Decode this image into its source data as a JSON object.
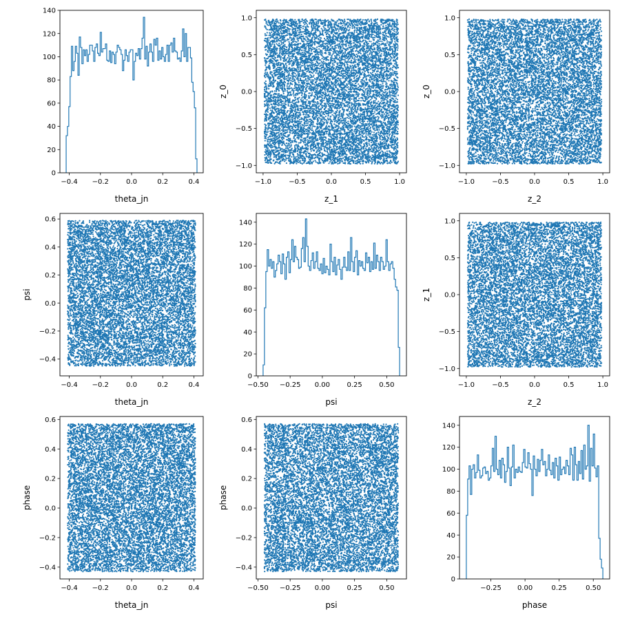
{
  "colors": {
    "series": "#1f77b4",
    "axes": "#000000",
    "background": "#ffffff"
  },
  "chart_data": [
    {
      "type": "histogram",
      "var": "theta_jn",
      "range": [
        -0.42,
        0.42
      ],
      "bins": 100,
      "counts": [
        32,
        40,
        57,
        83,
        109,
        88,
        96,
        109,
        103,
        84,
        117,
        108,
        94,
        106,
        101,
        106,
        96,
        102,
        110,
        110,
        105,
        96,
        108,
        111,
        103,
        101,
        121,
        104,
        107,
        107,
        111,
        97,
        96,
        105,
        95,
        104,
        102,
        94,
        104,
        110,
        108,
        106,
        102,
        88,
        97,
        106,
        101,
        96,
        104,
        106,
        106,
        80,
        96,
        103,
        101,
        107,
        98,
        107,
        116,
        134,
        98,
        109,
        92,
        104,
        111,
        104,
        96,
        115,
        110,
        116,
        97,
        105,
        98,
        108,
        100,
        96,
        102,
        110,
        96,
        110,
        112,
        104,
        116,
        105,
        104,
        98,
        99,
        96,
        105,
        124,
        100,
        120,
        96,
        108,
        108,
        99,
        78,
        70,
        56,
        12
      ],
      "xlim": [
        -0.46,
        0.46
      ],
      "ylim": [
        0,
        140
      ],
      "xticks": [
        -0.4,
        -0.2,
        0.0,
        0.2,
        0.4
      ],
      "xtick_labels": [
        "−0.4",
        "−0.2",
        "0.0",
        "0.2",
        "0.4"
      ],
      "yticks": [
        0,
        20,
        40,
        60,
        80,
        100,
        120,
        140
      ],
      "ytick_labels": [
        "0",
        "20",
        "40",
        "60",
        "80",
        "100",
        "120",
        "140"
      ],
      "xlabel": "theta_jn",
      "ylabel": ""
    },
    {
      "type": "scatter",
      "x_var": "z_1",
      "y_var": "z_0",
      "x_range": [
        -0.98,
        0.98
      ],
      "y_range": [
        -0.98,
        0.98
      ],
      "n_points": 10000,
      "uniform": true,
      "xlim": [
        -1.1,
        1.1
      ],
      "ylim": [
        -1.1,
        1.1
      ],
      "xticks": [
        -1.0,
        -0.5,
        0.0,
        0.5,
        1.0
      ],
      "xtick_labels": [
        "−1.0",
        "−0.5",
        "0.0",
        "0.5",
        "1.0"
      ],
      "yticks": [
        -1.0,
        -0.5,
        0.0,
        0.5,
        1.0
      ],
      "ytick_labels": [
        "−1.0",
        "−0.5",
        "0.0",
        "0.5",
        "1.0"
      ],
      "xlabel": "z_1",
      "ylabel": "z_0"
    },
    {
      "type": "scatter",
      "x_var": "z_2",
      "y_var": "z_0",
      "x_range": [
        -0.98,
        0.98
      ],
      "y_range": [
        -0.98,
        0.98
      ],
      "n_points": 10000,
      "uniform": true,
      "xlim": [
        -1.1,
        1.1
      ],
      "ylim": [
        -1.1,
        1.1
      ],
      "xticks": [
        -1.0,
        -0.5,
        0.0,
        0.5,
        1.0
      ],
      "xtick_labels": [
        "−1.0",
        "−0.5",
        "0.0",
        "0.5",
        "1.0"
      ],
      "yticks": [
        -1.0,
        -0.5,
        0.0,
        0.5,
        1.0
      ],
      "ytick_labels": [
        "−1.0",
        "−0.5",
        "0.0",
        "0.5",
        "1.0"
      ],
      "xlabel": "z_2",
      "ylabel": "z_0"
    },
    {
      "type": "scatter",
      "x_var": "theta_jn",
      "y_var": "psi",
      "x_range": [
        -0.41,
        0.41
      ],
      "y_range": [
        -0.45,
        0.59
      ],
      "n_points": 10000,
      "uniform": true,
      "xlim": [
        -0.46,
        0.46
      ],
      "ylim": [
        -0.52,
        0.64
      ],
      "xticks": [
        -0.4,
        -0.2,
        0.0,
        0.2,
        0.4
      ],
      "xtick_labels": [
        "−0.4",
        "−0.2",
        "0.0",
        "0.2",
        "0.4"
      ],
      "yticks": [
        -0.4,
        -0.2,
        0.0,
        0.2,
        0.4,
        0.6
      ],
      "ytick_labels": [
        "−0.4",
        "−0.2",
        "0.0",
        "0.2",
        "0.4",
        "0.6"
      ],
      "xlabel": "theta_jn",
      "ylabel": "psi"
    },
    {
      "type": "histogram",
      "var": "psi",
      "range": [
        -0.46,
        0.6
      ],
      "bins": 100,
      "counts": [
        10,
        62,
        95,
        115,
        100,
        106,
        98,
        104,
        90,
        96,
        102,
        110,
        104,
        93,
        111,
        102,
        88,
        108,
        113,
        94,
        106,
        124,
        104,
        118,
        108,
        106,
        98,
        99,
        116,
        126,
        104,
        143,
        118,
        100,
        96,
        105,
        112,
        98,
        104,
        113,
        98,
        96,
        102,
        93,
        107,
        94,
        100,
        97,
        92,
        120,
        104,
        95,
        108,
        92,
        101,
        106,
        97,
        88,
        99,
        108,
        99,
        96,
        113,
        96,
        126,
        104,
        95,
        108,
        114,
        92,
        105,
        100,
        104,
        98,
        96,
        112,
        103,
        108,
        95,
        104,
        97,
        121,
        98,
        110,
        104,
        96,
        108,
        104,
        97,
        100,
        124,
        104,
        96,
        102,
        104,
        98,
        88,
        81,
        78,
        26
      ],
      "xlim": [
        -0.513,
        0.653
      ],
      "ylim": [
        0,
        148
      ],
      "xticks": [
        -0.5,
        -0.25,
        0.0,
        0.25,
        0.5
      ],
      "xtick_labels": [
        "−0.50",
        "−0.25",
        "0.00",
        "0.25",
        "0.50"
      ],
      "yticks": [
        0,
        20,
        40,
        60,
        80,
        100,
        120,
        140
      ],
      "ytick_labels": [
        "0",
        "20",
        "40",
        "60",
        "80",
        "100",
        "120",
        "140"
      ],
      "xlabel": "psi",
      "ylabel": ""
    },
    {
      "type": "scatter",
      "x_var": "z_2",
      "y_var": "z_1",
      "x_range": [
        -0.98,
        0.98
      ],
      "y_range": [
        -0.98,
        0.98
      ],
      "n_points": 10000,
      "uniform": true,
      "xlim": [
        -1.1,
        1.1
      ],
      "ylim": [
        -1.1,
        1.1
      ],
      "xticks": [
        -1.0,
        -0.5,
        0.0,
        0.5,
        1.0
      ],
      "xtick_labels": [
        "−1.0",
        "−0.5",
        "0.0",
        "0.5",
        "1.0"
      ],
      "yticks": [
        -1.0,
        -0.5,
        0.0,
        0.5,
        1.0
      ],
      "ytick_labels": [
        "−1.0",
        "−0.5",
        "0.0",
        "0.5",
        "1.0"
      ],
      "xlabel": "z_2",
      "ylabel": "z_1"
    },
    {
      "type": "scatter",
      "x_var": "theta_jn",
      "y_var": "phase",
      "x_range": [
        -0.41,
        0.41
      ],
      "y_range": [
        -0.43,
        0.57
      ],
      "n_points": 10000,
      "uniform": true,
      "xlim": [
        -0.46,
        0.46
      ],
      "ylim": [
        -0.48,
        0.62
      ],
      "xticks": [
        -0.4,
        -0.2,
        0.0,
        0.2,
        0.4
      ],
      "xtick_labels": [
        "−0.4",
        "−0.2",
        "0.0",
        "0.2",
        "0.4"
      ],
      "yticks": [
        -0.4,
        -0.2,
        0.0,
        0.2,
        0.4,
        0.6
      ],
      "ytick_labels": [
        "−0.4",
        "−0.2",
        "0.0",
        "0.2",
        "0.4",
        "0.6"
      ],
      "xlabel": "theta_jn",
      "ylabel": "phase"
    },
    {
      "type": "scatter",
      "x_var": "psi",
      "y_var": "phase",
      "x_range": [
        -0.45,
        0.59
      ],
      "y_range": [
        -0.43,
        0.57
      ],
      "n_points": 10000,
      "uniform": true,
      "xlim": [
        -0.513,
        0.653
      ],
      "ylim": [
        -0.48,
        0.62
      ],
      "xticks": [
        -0.5,
        -0.25,
        0.0,
        0.25,
        0.5
      ],
      "xtick_labels": [
        "−0.50",
        "−0.25",
        "0.00",
        "0.25",
        "0.50"
      ],
      "yticks": [
        -0.4,
        -0.2,
        0.0,
        0.2,
        0.4,
        0.6
      ],
      "ytick_labels": [
        "−0.4",
        "−0.2",
        "0.0",
        "0.2",
        "0.4",
        "0.6"
      ],
      "xlabel": "psi",
      "ylabel": "phase"
    },
    {
      "type": "histogram",
      "var": "phase",
      "range": [
        -0.43,
        0.57
      ],
      "bins": 100,
      "counts": [
        58,
        91,
        103,
        77,
        100,
        104,
        92,
        97,
        113,
        99,
        92,
        94,
        101,
        102,
        96,
        98,
        90,
        92,
        103,
        119,
        98,
        130,
        100,
        95,
        108,
        92,
        110,
        104,
        88,
        98,
        120,
        101,
        85,
        102,
        122,
        92,
        100,
        97,
        102,
        98,
        97,
        106,
        118,
        102,
        101,
        115,
        105,
        100,
        76,
        112,
        100,
        94,
        109,
        98,
        108,
        118,
        104,
        107,
        94,
        100,
        113,
        99,
        95,
        106,
        92,
        110,
        103,
        90,
        111,
        95,
        100,
        102,
        96,
        108,
        103,
        95,
        119,
        113,
        90,
        120,
        104,
        90,
        107,
        96,
        117,
        91,
        122,
        100,
        103,
        140,
        89,
        119,
        103,
        132,
        101,
        93,
        103,
        37,
        18,
        10
      ],
      "xlim": [
        -0.48,
        0.62
      ],
      "ylim": [
        0,
        148
      ],
      "xticks": [
        -0.25,
        0.0,
        0.25,
        0.5
      ],
      "xtick_labels": [
        "−0.25",
        "0.00",
        "0.25",
        "0.50"
      ],
      "yticks": [
        0,
        20,
        40,
        60,
        80,
        100,
        120,
        140
      ],
      "ytick_labels": [
        "0",
        "20",
        "40",
        "60",
        "80",
        "100",
        "120",
        "140"
      ],
      "xlabel": "phase",
      "ylabel": ""
    }
  ]
}
